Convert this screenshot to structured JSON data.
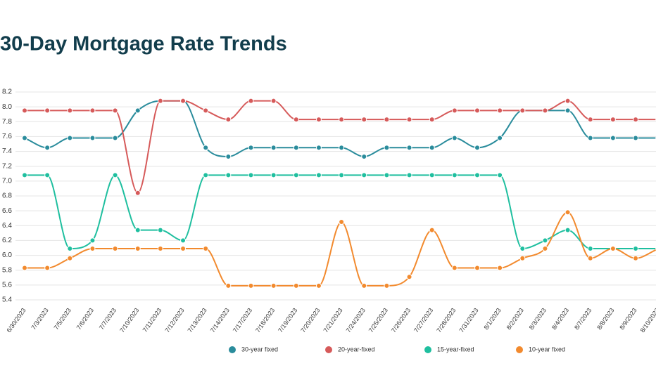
{
  "chart_data": {
    "type": "line",
    "title": "30-Day Mortgage Rate Trends",
    "categories": [
      "6/30/2023",
      "7/3/2023",
      "7/5/2023",
      "7/6/2023",
      "7/7/2023",
      "7/10/2023",
      "7/11/2023",
      "7/12/2023",
      "7/13/2023",
      "7/14/2023",
      "7/17/2023",
      "7/18/2023",
      "7/19/2023",
      "7/20/2023",
      "7/21/2023",
      "7/24/2023",
      "7/25/2023",
      "7/26/2023",
      "7/27/2023",
      "7/28/2023",
      "7/31/2023",
      "8/1/2023",
      "8/2/2023",
      "8/3/2023",
      "8/4/2023",
      "8/7/2023",
      "8/8/2023",
      "8/9/2023",
      "8/10/2023"
    ],
    "series": [
      {
        "name": "30-year fixed",
        "color": "#2a8c9c",
        "values": [
          7.58,
          7.45,
          7.58,
          7.58,
          7.58,
          7.95,
          8.08,
          8.08,
          7.45,
          7.33,
          7.45,
          7.45,
          7.45,
          7.45,
          7.45,
          7.33,
          7.45,
          7.45,
          7.45,
          7.58,
          7.45,
          7.58,
          7.95,
          7.95,
          7.95,
          7.58,
          7.58,
          7.58,
          7.58
        ]
      },
      {
        "name": "20-year-fixed",
        "color": "#d65a5a",
        "values": [
          7.95,
          7.95,
          7.95,
          7.95,
          7.95,
          6.84,
          8.08,
          8.08,
          7.95,
          7.83,
          8.08,
          8.08,
          7.83,
          7.83,
          7.83,
          7.83,
          7.83,
          7.83,
          7.83,
          7.95,
          7.95,
          7.95,
          7.95,
          7.95,
          8.08,
          7.83,
          7.83,
          7.83,
          7.83
        ]
      },
      {
        "name": "15-year-fixed",
        "color": "#1fbf9f",
        "values": [
          7.08,
          7.08,
          6.09,
          6.2,
          7.08,
          6.34,
          6.34,
          6.2,
          7.08,
          7.08,
          7.08,
          7.08,
          7.08,
          7.08,
          7.08,
          7.08,
          7.08,
          7.08,
          7.08,
          7.08,
          7.08,
          7.08,
          6.09,
          6.2,
          6.34,
          6.09,
          6.09,
          6.09,
          6.09
        ]
      },
      {
        "name": "10-year fixed",
        "color": "#f28a2e",
        "values": [
          5.83,
          5.83,
          5.96,
          6.09,
          6.09,
          6.09,
          6.09,
          6.09,
          6.09,
          5.59,
          5.59,
          5.59,
          5.59,
          5.59,
          6.45,
          5.59,
          5.59,
          5.71,
          6.34,
          5.83,
          5.83,
          5.83,
          5.96,
          6.09,
          6.58,
          5.96,
          6.09,
          5.96,
          6.09
        ]
      }
    ],
    "ylim": [
      5.4,
      8.2
    ],
    "yticks": [
      5.4,
      5.6,
      5.8,
      {
        "value": 6,
        "label": "6.0"
      },
      6.2,
      6.4,
      6.6,
      6.8,
      {
        "value": 7,
        "label": "7.0"
      },
      7.2,
      7.4,
      7.6,
      7.8,
      {
        "value": 8,
        "label": "8.0"
      },
      8.2
    ],
    "grid": true,
    "legend": "bottom"
  }
}
